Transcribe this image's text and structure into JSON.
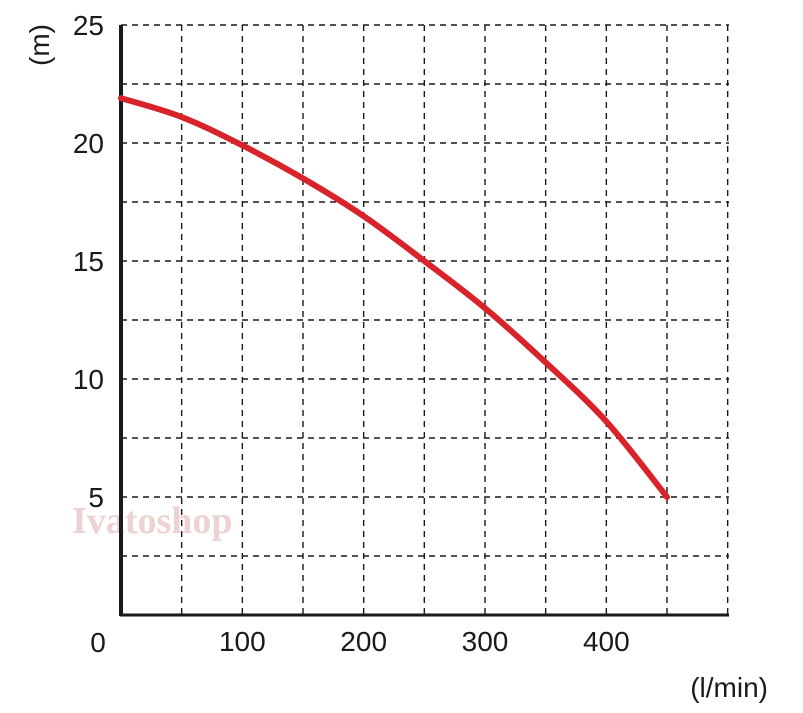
{
  "chart_data": {
    "type": "line",
    "title": "",
    "xlabel": "(l/min)",
    "ylabel": "(m)",
    "xlim": [
      0,
      500
    ],
    "ylim": [
      0,
      25
    ],
    "grid": true,
    "grid_style": "dashed",
    "x_ticks": [
      0,
      50,
      100,
      150,
      200,
      250,
      300,
      350,
      400,
      450,
      500
    ],
    "y_ticks": [
      0,
      2.5,
      5,
      7.5,
      10,
      12.5,
      15,
      17.5,
      20,
      22.5,
      25
    ],
    "x_tick_labels": [
      {
        "value": 100,
        "label": "100"
      },
      {
        "value": 200,
        "label": "200"
      },
      {
        "value": 300,
        "label": "300"
      },
      {
        "value": 400,
        "label": "400"
      }
    ],
    "y_tick_labels": [
      {
        "value": 5,
        "label": "5"
      },
      {
        "value": 10,
        "label": "10"
      },
      {
        "value": 15,
        "label": "15"
      },
      {
        "value": 20,
        "label": "20"
      },
      {
        "value": 25,
        "label": "25"
      }
    ],
    "origin_label": "0",
    "series": [
      {
        "color": "#d8232a",
        "x": [
          0,
          50,
          100,
          150,
          200,
          250,
          300,
          350,
          400,
          450
        ],
        "y": [
          21.9,
          21.1,
          19.9,
          18.5,
          16.9,
          15.0,
          13.0,
          10.7,
          8.2,
          5.0
        ]
      }
    ]
  },
  "watermark": "Ivatoshop",
  "colors": {
    "axis": "#1a1a1a",
    "grid": "#1a1a1a",
    "line": "#d8232a"
  }
}
